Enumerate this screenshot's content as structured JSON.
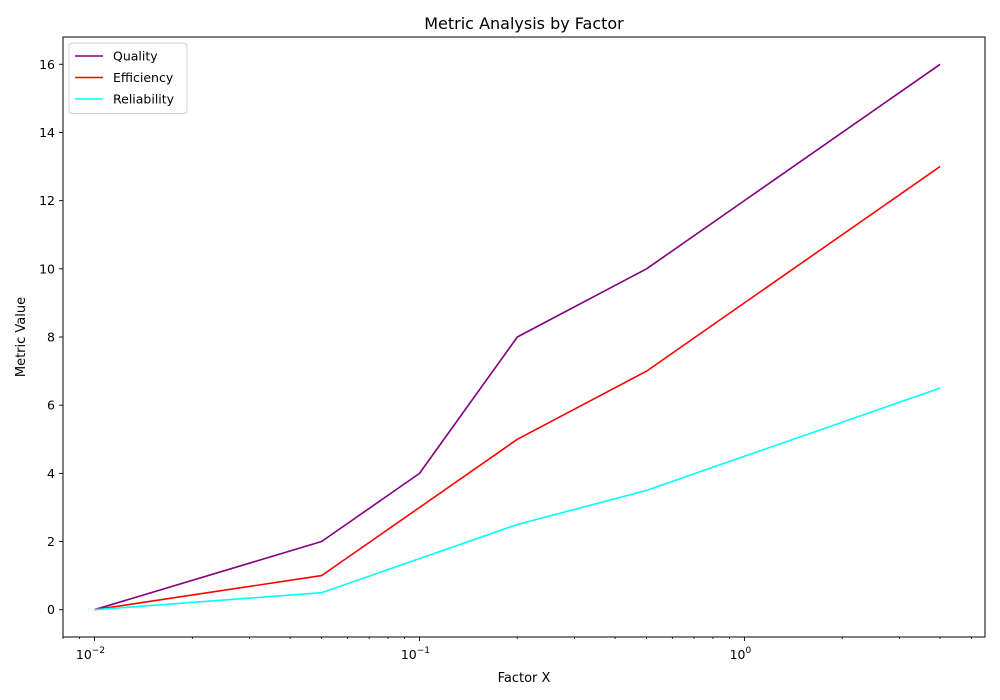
{
  "chart_data": {
    "type": "line",
    "title": "Metric Analysis by Factor",
    "xlabel": "Factor X",
    "ylabel": "Metric Value",
    "xscale": "log",
    "xlim": [
      0.008,
      5.5
    ],
    "ylim": [
      -0.8,
      16.8
    ],
    "x": [
      0.01,
      0.05,
      0.1,
      0.2,
      0.5,
      1,
      4
    ],
    "xticks": [
      {
        "value": 0.01,
        "base": "10",
        "exp": "−2"
      },
      {
        "value": 0.1,
        "base": "10",
        "exp": "−1"
      },
      {
        "value": 1,
        "base": "10",
        "exp": "0"
      }
    ],
    "yticks": [
      0,
      2,
      4,
      6,
      8,
      10,
      12,
      14,
      16
    ],
    "series": [
      {
        "name": "Quality",
        "color": "#800080",
        "values": [
          0,
          2,
          4,
          8,
          10,
          12,
          16
        ]
      },
      {
        "name": "Efficiency",
        "color": "#ff0000",
        "values": [
          0,
          1,
          3,
          5,
          7,
          9,
          13
        ]
      },
      {
        "name": "Reliability",
        "color": "#00ffff",
        "values": [
          0,
          0.5,
          1.5,
          2.5,
          3.5,
          4.5,
          6.5
        ]
      }
    ],
    "grid": false,
    "legend_position": "top-left"
  }
}
